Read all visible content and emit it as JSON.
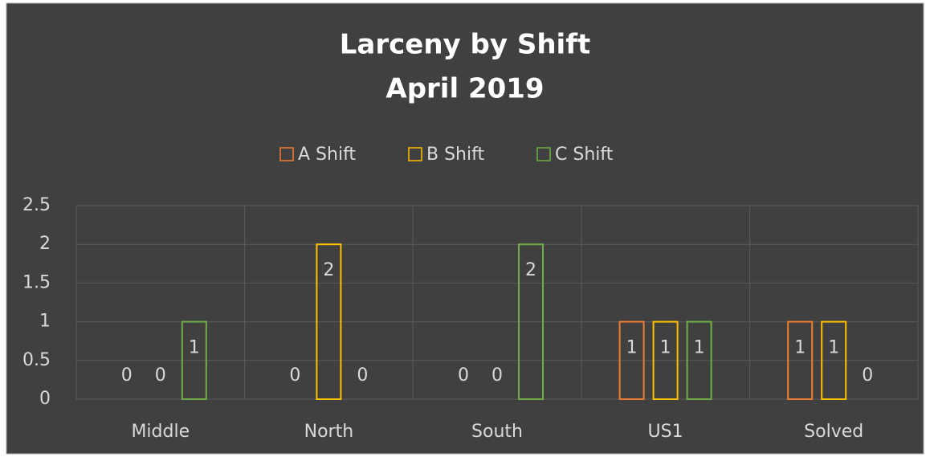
{
  "chart_data": {
    "type": "bar",
    "title": "Larceny by Shift",
    "subtitle": "April 2019",
    "categories": [
      "Middle",
      "North",
      "South",
      "US1",
      "Solved"
    ],
    "series": [
      {
        "name": "A Shift",
        "color": "#ED7D31",
        "values": [
          0,
          0,
          0,
          1,
          1
        ]
      },
      {
        "name": "B Shift",
        "color": "#FFC000",
        "values": [
          0,
          2,
          0,
          1,
          1
        ]
      },
      {
        "name": "C Shift",
        "color": "#70AD47",
        "values": [
          1,
          0,
          2,
          1,
          0
        ]
      }
    ],
    "ylim": [
      0,
      2.5
    ],
    "yticks": [
      0,
      0.5,
      1,
      1.5,
      2,
      2.5
    ],
    "grid": true,
    "legend": "top"
  }
}
